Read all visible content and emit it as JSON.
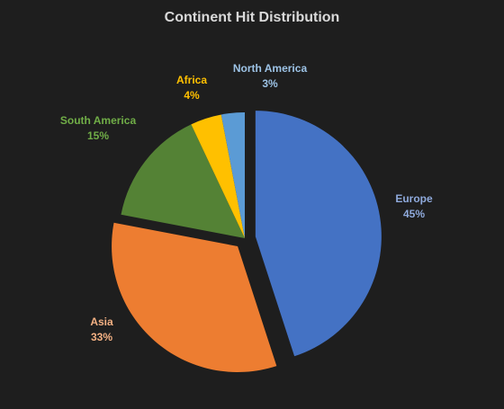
{
  "chart_data": {
    "type": "pie",
    "title": "Continent Hit Distribution",
    "slices": [
      {
        "label": "Europe",
        "value": 45,
        "value_label": "45%",
        "color": "#4472c4"
      },
      {
        "label": "Asia",
        "value": 33,
        "value_label": "33%",
        "color": "#ed7d31"
      },
      {
        "label": "South America",
        "value": 15,
        "value_label": "15%",
        "color": "#548235"
      },
      {
        "label": "Africa",
        "value": 4,
        "value_label": "4%",
        "color": "#ffc000"
      },
      {
        "label": "North America",
        "value": 3,
        "value_label": "3%",
        "color": "#5b9bd5"
      }
    ],
    "exploded": [
      "Europe",
      "Asia"
    ],
    "label_colors": {
      "Europe": "#8faadc",
      "Asia": "#f4b183",
      "South America": "#70ad47",
      "Africa": "#ffc000",
      "North America": "#9dc3e6"
    },
    "legend": "none",
    "background": "#1e1e1e"
  }
}
